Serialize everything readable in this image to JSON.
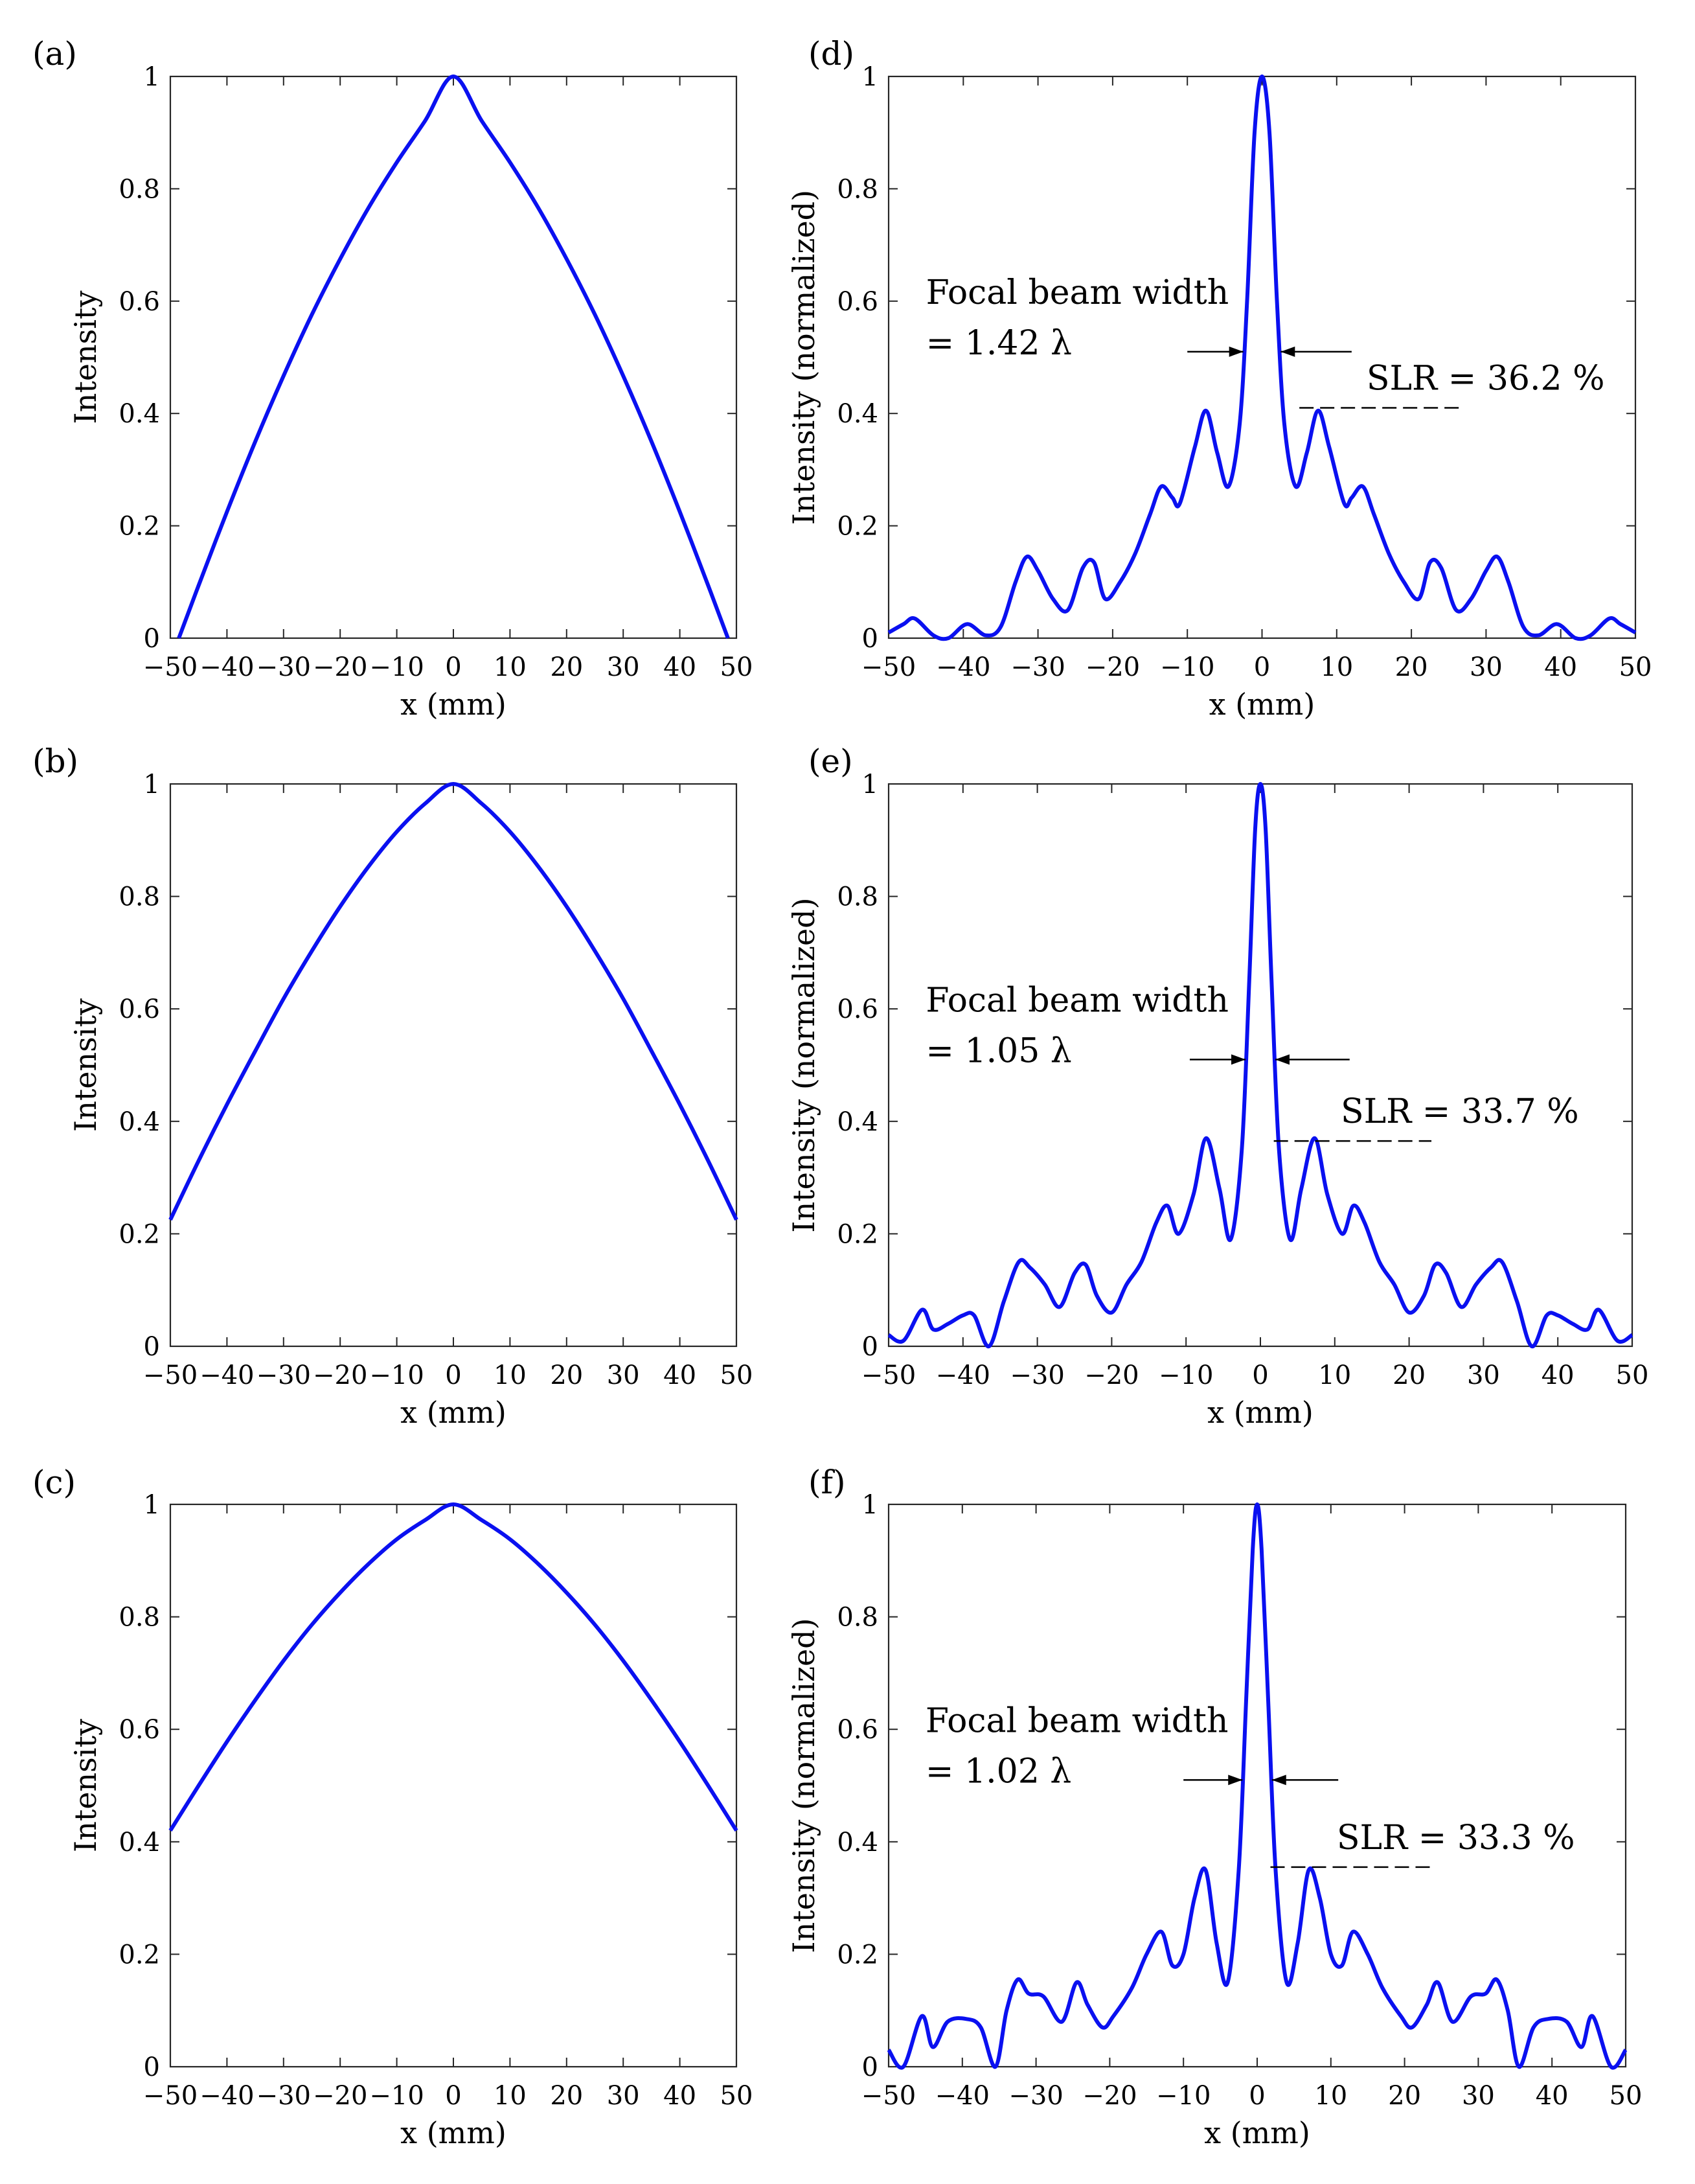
{
  "figure": {
    "panels_left": [
      "a",
      "b",
      "c"
    ],
    "panels_right": [
      "d",
      "e",
      "f"
    ]
  },
  "chart_data": [
    {
      "panel": "a",
      "panel_label": "(a)",
      "type": "line",
      "xlabel": "x (mm)",
      "ylabel": "Intensity",
      "xlim": [
        -50,
        50
      ],
      "ylim": [
        0,
        1
      ],
      "xticks": [
        -50,
        -40,
        -30,
        -20,
        -10,
        0,
        10,
        20,
        30,
        40,
        50
      ],
      "xtick_labels": [
        "−50",
        "−40",
        "−30",
        "−20",
        "−10",
        "0",
        "10",
        "20",
        "30",
        "40",
        "50"
      ],
      "yticks": [
        0,
        0.2,
        0.4,
        0.6,
        0.8,
        1
      ],
      "ytick_labels": [
        "0",
        "0.2",
        "0.4",
        "0.6",
        "0.8",
        "1"
      ],
      "color": "#0a10f0",
      "x": [
        -48.5,
        -45,
        -40,
        -35,
        -30,
        -25,
        -20,
        -15,
        -10,
        -5,
        0,
        5,
        10,
        15,
        20,
        25,
        30,
        35,
        40,
        45,
        48.5
      ],
      "y": [
        0,
        0.094,
        0.225,
        0.35,
        0.467,
        0.576,
        0.675,
        0.766,
        0.847,
        0.921,
        1.0,
        0.921,
        0.847,
        0.766,
        0.675,
        0.576,
        0.467,
        0.35,
        0.225,
        0.094,
        0
      ]
    },
    {
      "panel": "b",
      "panel_label": "(b)",
      "type": "line",
      "xlabel": "x (mm)",
      "ylabel": "Intensity",
      "xlim": [
        -50,
        50
      ],
      "ylim": [
        0,
        1
      ],
      "xticks": [
        -50,
        -40,
        -30,
        -20,
        -10,
        0,
        10,
        20,
        30,
        40,
        50
      ],
      "xtick_labels": [
        "−50",
        "−40",
        "−30",
        "−20",
        "−10",
        "0",
        "10",
        "20",
        "30",
        "40",
        "50"
      ],
      "yticks": [
        0,
        0.2,
        0.4,
        0.6,
        0.8,
        1
      ],
      "ytick_labels": [
        "0",
        "0.2",
        "0.4",
        "0.6",
        "0.8",
        "1"
      ],
      "color": "#0a10f0",
      "x": [
        -50,
        -45,
        -40,
        -35,
        -30,
        -25,
        -20,
        -15,
        -10,
        -5,
        0,
        5,
        10,
        15,
        20,
        25,
        30,
        35,
        40,
        45,
        50
      ],
      "y": [
        0.225,
        0.33,
        0.43,
        0.525,
        0.618,
        0.703,
        0.782,
        0.853,
        0.915,
        0.965,
        1.0,
        0.965,
        0.915,
        0.853,
        0.782,
        0.703,
        0.618,
        0.525,
        0.43,
        0.33,
        0.225
      ]
    },
    {
      "panel": "c",
      "panel_label": "(c)",
      "type": "line",
      "xlabel": "x (mm)",
      "ylabel": "Intensity",
      "xlim": [
        -50,
        50
      ],
      "ylim": [
        0,
        1
      ],
      "xticks": [
        -50,
        -40,
        -30,
        -20,
        -10,
        0,
        10,
        20,
        30,
        40,
        50
      ],
      "xtick_labels": [
        "−50",
        "−40",
        "−30",
        "−20",
        "−10",
        "0",
        "10",
        "20",
        "30",
        "40",
        "50"
      ],
      "yticks": [
        0,
        0.2,
        0.4,
        0.6,
        0.8,
        1
      ],
      "ytick_labels": [
        "0",
        "0.2",
        "0.4",
        "0.6",
        "0.8",
        "1"
      ],
      "color": "#0a10f0",
      "x": [
        -50,
        -45,
        -40,
        -35,
        -30,
        -25,
        -20,
        -15,
        -10,
        -5,
        0,
        5,
        10,
        15,
        20,
        25,
        30,
        35,
        40,
        45,
        50
      ],
      "y": [
        0.42,
        0.5,
        0.578,
        0.652,
        0.722,
        0.786,
        0.843,
        0.894,
        0.938,
        0.972,
        1.0,
        0.972,
        0.938,
        0.894,
        0.843,
        0.786,
        0.722,
        0.652,
        0.578,
        0.5,
        0.42
      ]
    },
    {
      "panel": "d",
      "panel_label": "(d)",
      "type": "line",
      "xlabel": "x (mm)",
      "ylabel": "Intensity (normalized)",
      "xlim": [
        -50,
        50
      ],
      "ylim": [
        0,
        1
      ],
      "xticks": [
        -50,
        -40,
        -30,
        -20,
        -10,
        0,
        10,
        20,
        30,
        40,
        50
      ],
      "xtick_labels": [
        "−50",
        "−40",
        "−30",
        "−20",
        "−10",
        "0",
        "10",
        "20",
        "30",
        "40",
        "50"
      ],
      "yticks": [
        0,
        0.2,
        0.4,
        0.6,
        0.8,
        1
      ],
      "ytick_labels": [
        "0",
        "0.2",
        "0.4",
        "0.6",
        "0.8",
        "1"
      ],
      "color": "#0a10f0",
      "x": [
        -50,
        -48,
        -46.5,
        -44,
        -42,
        -39.5,
        -37,
        -35,
        -33,
        -31.5,
        -30,
        -28,
        -26,
        -24,
        -22.5,
        -21,
        -19,
        -17,
        -15,
        -13.5,
        -12,
        -11,
        -9,
        -7.5,
        -6,
        -4.5,
        -3,
        -2,
        -1,
        0,
        1,
        2,
        3,
        4.5,
        6,
        7.5,
        9,
        11,
        12,
        13.5,
        15,
        17,
        19,
        21,
        22.5,
        24,
        26,
        28,
        30,
        31.5,
        33,
        35,
        37,
        39.5,
        42,
        44,
        46.5,
        48,
        50
      ],
      "y": [
        0.01,
        0.025,
        0.035,
        0.005,
        0.0,
        0.025,
        0.005,
        0.02,
        0.1,
        0.145,
        0.12,
        0.07,
        0.05,
        0.125,
        0.135,
        0.07,
        0.1,
        0.15,
        0.22,
        0.27,
        0.25,
        0.24,
        0.34,
        0.405,
        0.33,
        0.27,
        0.38,
        0.6,
        0.9,
        1.0,
        0.9,
        0.6,
        0.38,
        0.27,
        0.33,
        0.405,
        0.34,
        0.24,
        0.25,
        0.27,
        0.22,
        0.15,
        0.1,
        0.07,
        0.135,
        0.125,
        0.05,
        0.07,
        0.12,
        0.145,
        0.1,
        0.02,
        0.005,
        0.025,
        0.0,
        0.005,
        0.035,
        0.025,
        0.01
      ],
      "annotations": {
        "beam_line1": "Focal beam width",
        "beam_line2": "= 1.42 λ",
        "slr": "SLR = 36.2 %",
        "beam_y": 0.51,
        "beam_x_left": -2.5,
        "beam_x_right": 2.5,
        "beam_x_far_left": -10,
        "beam_x_far_right": 12,
        "slr_y": 0.41,
        "slr_x_start": 5,
        "slr_x_end": 27
      }
    },
    {
      "panel": "e",
      "panel_label": "(e)",
      "type": "line",
      "xlabel": "x (mm)",
      "ylabel": "Intensity (normalized)",
      "xlim": [
        -50,
        50
      ],
      "ylim": [
        0,
        1
      ],
      "xticks": [
        -50,
        -40,
        -30,
        -20,
        -10,
        0,
        10,
        20,
        30,
        40,
        50
      ],
      "xtick_labels": [
        "−50",
        "−40",
        "−30",
        "−20",
        "−10",
        "0",
        "10",
        "20",
        "30",
        "40",
        "50"
      ],
      "yticks": [
        0,
        0.2,
        0.4,
        0.6,
        0.8,
        1
      ],
      "ytick_labels": [
        "0",
        "0.2",
        "0.4",
        "0.6",
        "0.8",
        "1"
      ],
      "color": "#0a10f0",
      "x": [
        -50,
        -48,
        -45.5,
        -44,
        -42,
        -40,
        -38.5,
        -36.5,
        -34.5,
        -32.5,
        -31,
        -29,
        -27,
        -25,
        -23.5,
        -22,
        -20,
        -18,
        -16,
        -14,
        -12.5,
        -11,
        -9,
        -7.3,
        -5.5,
        -4,
        -2.5,
        -1.5,
        -0.7,
        0,
        0.7,
        1.5,
        2.5,
        4,
        5.5,
        7.3,
        9,
        11,
        12.5,
        14,
        16,
        18,
        20,
        22,
        23.5,
        25,
        27,
        29,
        31,
        32.5,
        34.5,
        36.5,
        38.5,
        40,
        42,
        44,
        45.5,
        48,
        50
      ],
      "y": [
        0.02,
        0.01,
        0.065,
        0.03,
        0.04,
        0.055,
        0.055,
        0.0,
        0.08,
        0.15,
        0.14,
        0.11,
        0.07,
        0.13,
        0.145,
        0.09,
        0.06,
        0.11,
        0.15,
        0.22,
        0.25,
        0.2,
        0.27,
        0.37,
        0.28,
        0.19,
        0.35,
        0.65,
        0.92,
        1.0,
        0.92,
        0.65,
        0.35,
        0.19,
        0.28,
        0.37,
        0.27,
        0.2,
        0.25,
        0.22,
        0.15,
        0.11,
        0.06,
        0.09,
        0.145,
        0.13,
        0.07,
        0.11,
        0.14,
        0.15,
        0.08,
        0.0,
        0.055,
        0.055,
        0.04,
        0.03,
        0.065,
        0.01,
        0.02
      ],
      "annotations": {
        "beam_line1": "Focal beam width",
        "beam_line2": "= 1.05 λ",
        "slr": "SLR = 33.7 %",
        "beam_y": 0.51,
        "beam_x_left": -2,
        "beam_x_right": 2,
        "beam_x_far_left": -9.5,
        "beam_x_far_right": 12,
        "slr_y": 0.365,
        "slr_x_start": 1.8,
        "slr_x_end": 23
      }
    },
    {
      "panel": "f",
      "panel_label": "(f)",
      "type": "line",
      "xlabel": "x (mm)",
      "ylabel": "Intensity (normalized)",
      "xlim": [
        -50,
        50
      ],
      "ylim": [
        0,
        1
      ],
      "xticks": [
        -50,
        -40,
        -30,
        -20,
        -10,
        0,
        10,
        20,
        30,
        40,
        50
      ],
      "xtick_labels": [
        "−50",
        "−40",
        "−30",
        "−20",
        "−10",
        "0",
        "10",
        "20",
        "30",
        "40",
        "50"
      ],
      "yticks": [
        0,
        0.2,
        0.4,
        0.6,
        0.8,
        1
      ],
      "ytick_labels": [
        "0",
        "0.2",
        "0.4",
        "0.6",
        "0.8",
        "1"
      ],
      "color": "#0a10f0",
      "x": [
        -50,
        -48,
        -45.5,
        -44,
        -42,
        -39.5,
        -37.5,
        -35.5,
        -34,
        -32.5,
        -31,
        -29,
        -26.5,
        -24.5,
        -23,
        -21,
        -19.5,
        -17,
        -15,
        -13,
        -11.5,
        -10,
        -8.5,
        -7,
        -5.5,
        -4,
        -2.5,
        -1.5,
        -0.6,
        0,
        0.6,
        1.5,
        2.5,
        4,
        5.5,
        7,
        8.5,
        10,
        11.5,
        13,
        15,
        17,
        19.5,
        21,
        23,
        24.5,
        26.5,
        29,
        31,
        32.5,
        34,
        35.5,
        37.5,
        39.5,
        42,
        44,
        45.5,
        48,
        50
      ],
      "y": [
        0.03,
        0.0,
        0.09,
        0.035,
        0.08,
        0.085,
        0.07,
        0.0,
        0.1,
        0.155,
        0.13,
        0.125,
        0.08,
        0.15,
        0.11,
        0.07,
        0.09,
        0.14,
        0.2,
        0.24,
        0.18,
        0.2,
        0.3,
        0.35,
        0.22,
        0.15,
        0.35,
        0.65,
        0.92,
        1.0,
        0.92,
        0.65,
        0.35,
        0.15,
        0.22,
        0.35,
        0.3,
        0.2,
        0.18,
        0.24,
        0.2,
        0.14,
        0.09,
        0.07,
        0.11,
        0.15,
        0.08,
        0.125,
        0.13,
        0.155,
        0.1,
        0.0,
        0.07,
        0.085,
        0.08,
        0.035,
        0.09,
        0.0,
        0.03
      ],
      "annotations": {
        "beam_line1": "Focal beam width",
        "beam_line2": "= 1.02 λ",
        "slr": "SLR = 33.3 %",
        "beam_y": 0.51,
        "beam_x_left": -2,
        "beam_x_right": 2,
        "beam_x_far_left": -10,
        "beam_x_far_right": 11,
        "slr_y": 0.355,
        "slr_x_start": 1.8,
        "slr_x_end": 24
      }
    }
  ]
}
